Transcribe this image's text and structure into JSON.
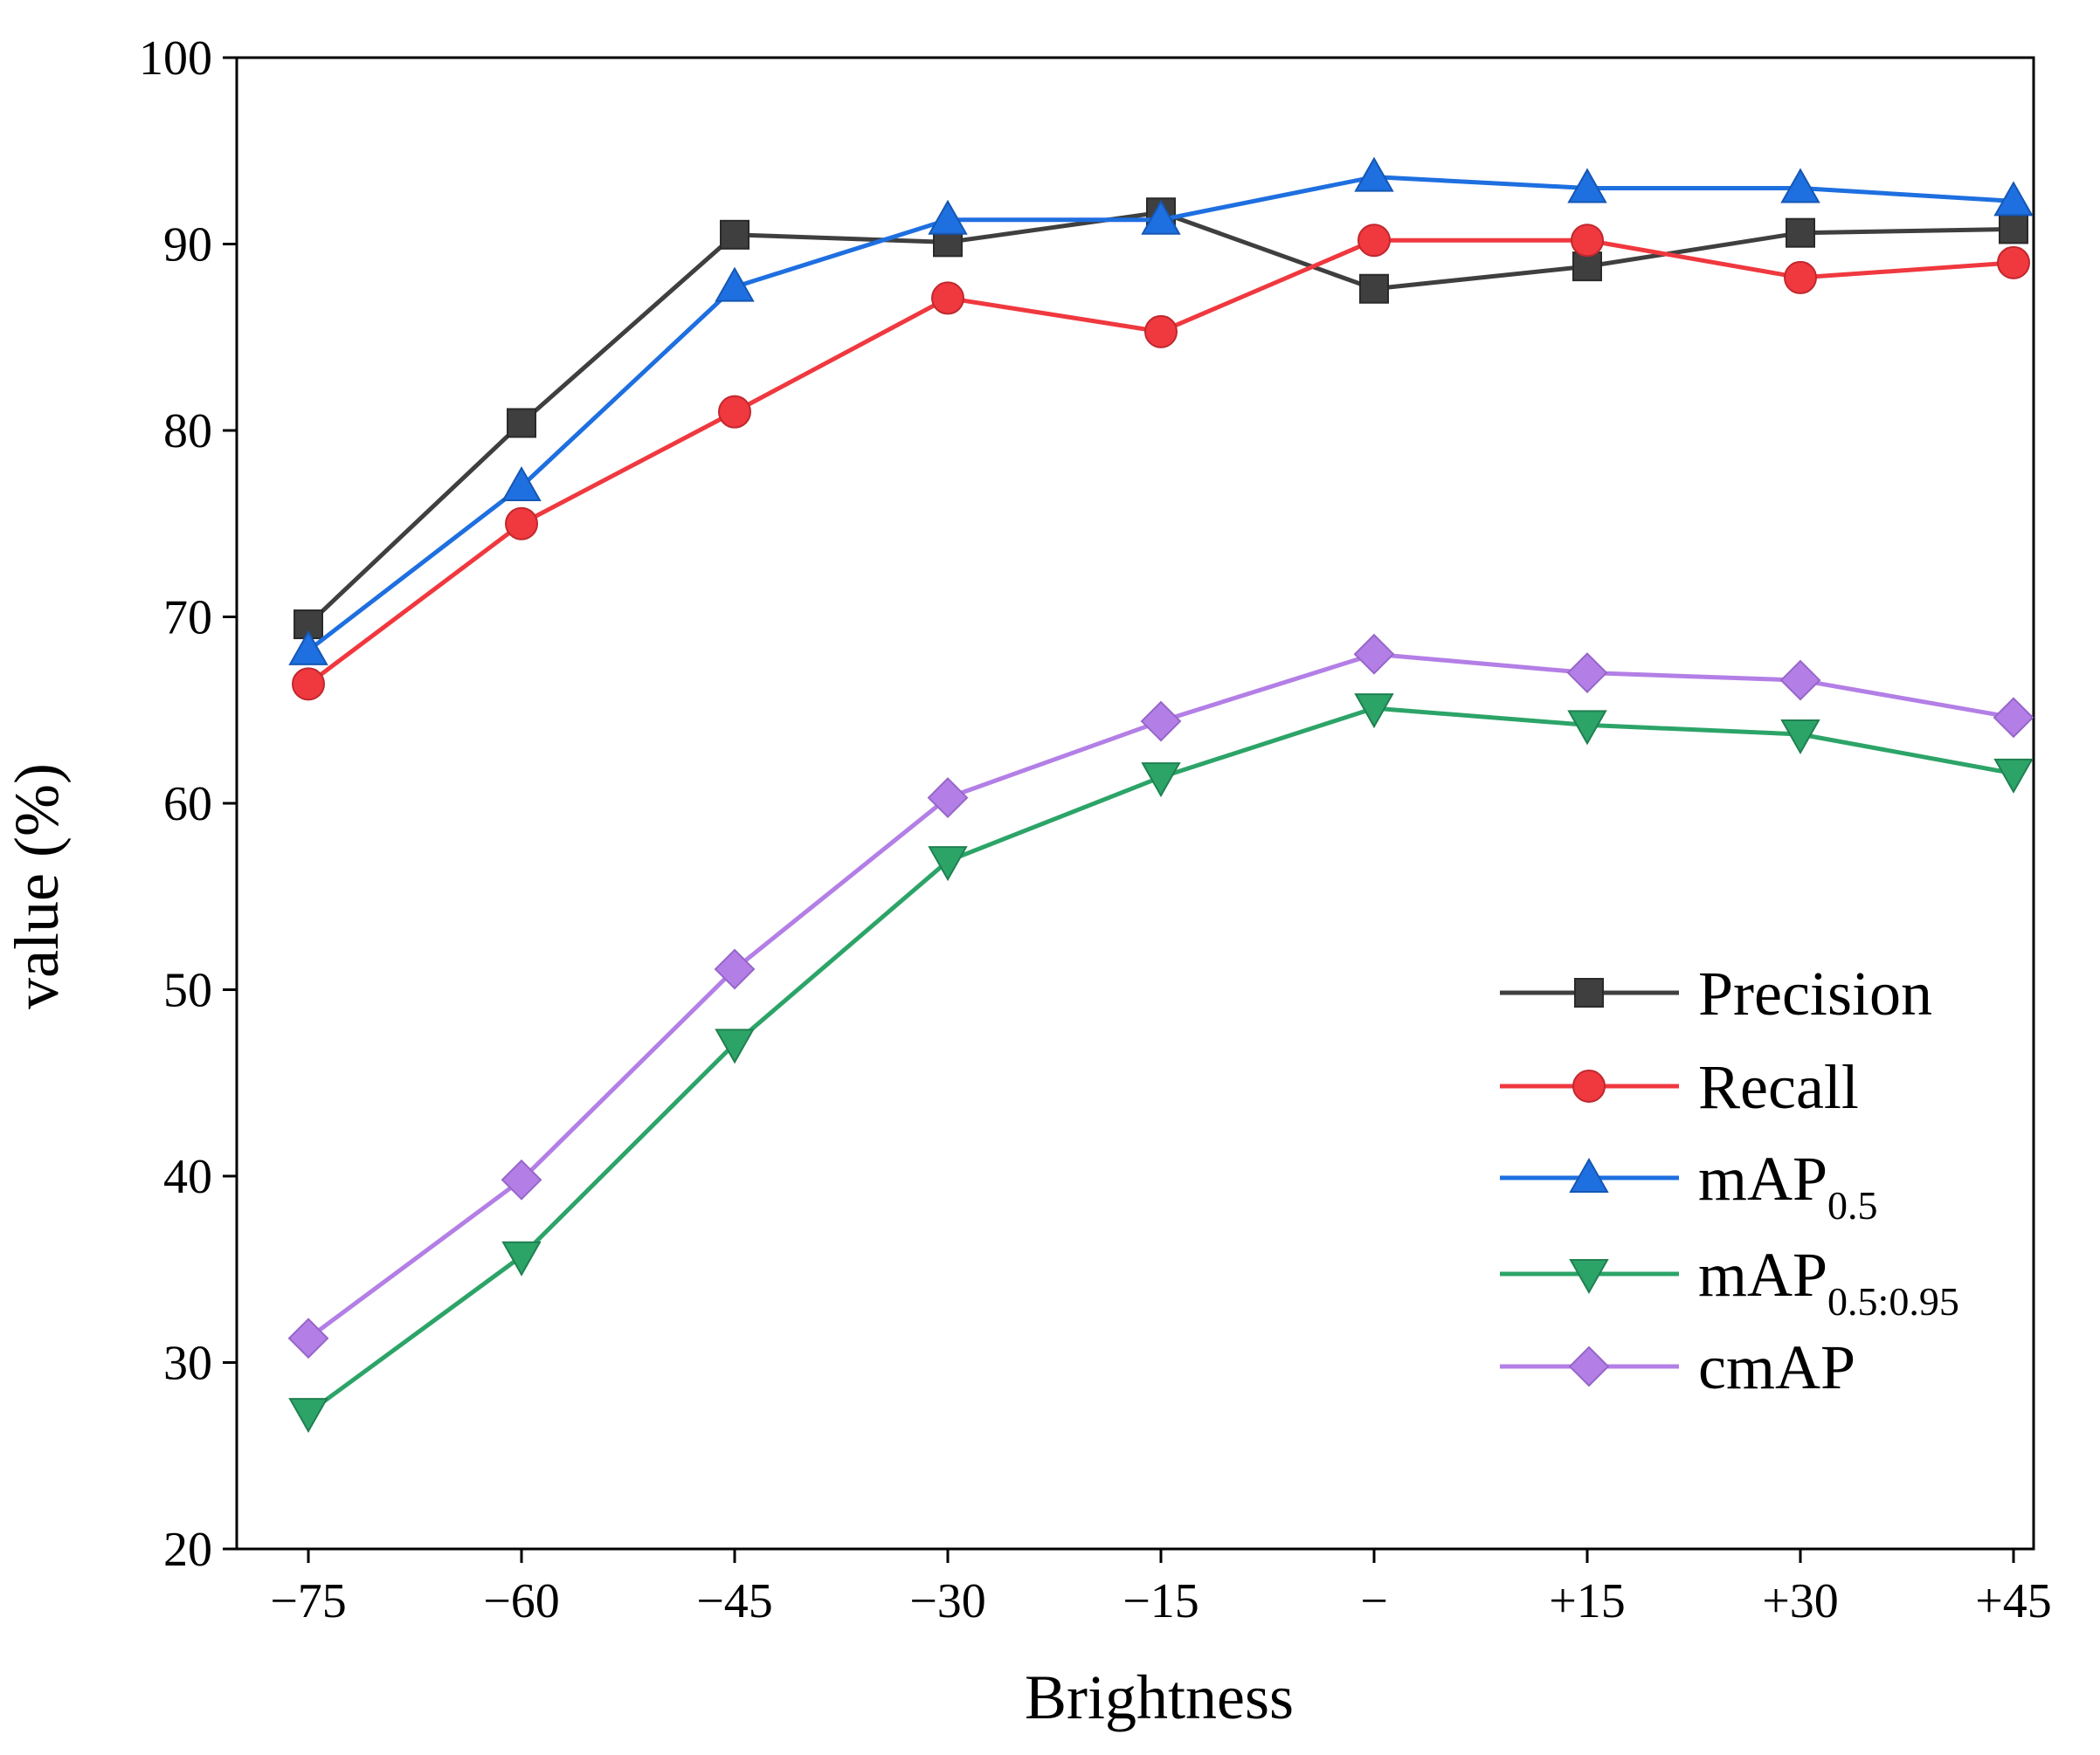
{
  "chart_data": {
    "type": "line",
    "title": "",
    "xlabel": "Brightness",
    "ylabel": "value (%)",
    "categories": [
      "−75",
      "−60",
      "−45",
      "−30",
      "−15",
      "−",
      "+15",
      "+30",
      "+45"
    ],
    "ylim": [
      20,
      100
    ],
    "yticks": [
      20,
      30,
      40,
      50,
      60,
      70,
      80,
      90,
      100
    ],
    "legend_position": "lower-right",
    "series": [
      {
        "name": "Precision",
        "base": "Precision",
        "sub": "",
        "marker": "square",
        "color": "#3f3f3f",
        "values": [
          69.6,
          80.4,
          90.5,
          90.1,
          91.7,
          87.6,
          88.8,
          90.6,
          90.8
        ]
      },
      {
        "name": "Recall",
        "base": "Recall",
        "sub": "",
        "marker": "circle",
        "color": "#f0383f",
        "values": [
          66.4,
          75.0,
          81.0,
          87.1,
          85.3,
          90.2,
          90.2,
          88.2,
          89.0
        ]
      },
      {
        "name": "mAP0.5",
        "base": "mAP",
        "sub": "0.5",
        "marker": "triangle-up",
        "color": "#1e6fe0",
        "values": [
          68.2,
          77.0,
          87.7,
          91.3,
          91.3,
          93.6,
          93.0,
          93.0,
          92.3
        ]
      },
      {
        "name": "mAP0.5:0.95",
        "base": "mAP",
        "sub": "0.5:0.95",
        "marker": "triangle-down",
        "color": "#2ca468",
        "values": [
          27.3,
          35.7,
          47.1,
          56.9,
          61.4,
          65.1,
          64.2,
          63.7,
          61.6
        ]
      },
      {
        "name": "cmAP",
        "base": "cmAP",
        "sub": "",
        "marker": "diamond",
        "color": "#b37fe6",
        "values": [
          31.3,
          39.8,
          51.1,
          60.3,
          64.4,
          68.0,
          67.0,
          66.6,
          64.6
        ]
      }
    ]
  }
}
